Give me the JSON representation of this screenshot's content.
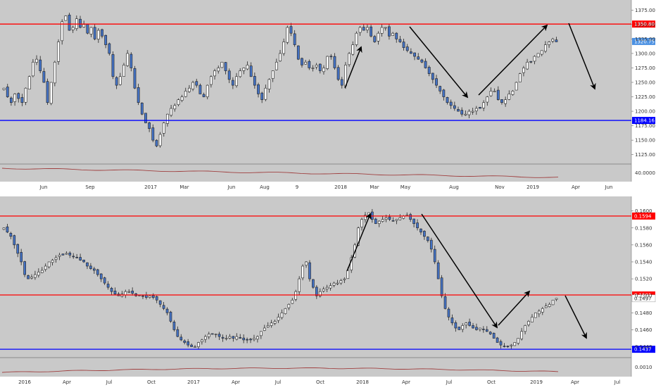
{
  "colors": {
    "background": "#c9c9c9",
    "axis_bg": "#ffffff",
    "bull_candle": "#ffffff",
    "bear_candle": "#4472c4",
    "wick": "#222222",
    "resistance": "#ff0000",
    "support": "#0000ff",
    "indicator": "#a04040",
    "arrow": "#000000",
    "last_price": "#4a90e2"
  },
  "chart_data": [
    {
      "type": "candlestick",
      "panel": "top",
      "ylim": [
        1110,
        1390
      ],
      "y_ticks": [
        "1375.00",
        "1350.00",
        "1325.00",
        "1300.00",
        "1275.00",
        "1250.00",
        "1225.00",
        "1200.00",
        "1175.00",
        "1150.00",
        "1125.00"
      ],
      "x_ticks": [
        "Jun",
        "Sep",
        "2017",
        "Mar",
        "Jun",
        "Aug",
        "9",
        "2018",
        "Mar",
        "May",
        "Aug",
        "Nov",
        "2019",
        "Apr",
        "Jun"
      ],
      "resistance": {
        "value": 1350.8,
        "label": "1350.80"
      },
      "support": {
        "value": 1184.16,
        "label": "1184.16"
      },
      "last_price": {
        "value": 1320.75,
        "label": "1320.75"
      },
      "indicator_label": "40.0000",
      "closes": [
        1240,
        1225,
        1215,
        1230,
        1222,
        1215,
        1240,
        1260,
        1285,
        1290,
        1270,
        1250,
        1215,
        1250,
        1285,
        1320,
        1355,
        1365,
        1340,
        1345,
        1360,
        1345,
        1350,
        1335,
        1345,
        1325,
        1340,
        1330,
        1315,
        1300,
        1260,
        1245,
        1260,
        1280,
        1300,
        1275,
        1240,
        1215,
        1195,
        1180,
        1170,
        1150,
        1140,
        1160,
        1180,
        1195,
        1205,
        1210,
        1220,
        1225,
        1235,
        1240,
        1250,
        1245,
        1230,
        1225,
        1245,
        1260,
        1270,
        1275,
        1285,
        1270,
        1255,
        1245,
        1260,
        1270,
        1275,
        1280,
        1260,
        1245,
        1230,
        1220,
        1240,
        1255,
        1270,
        1285,
        1300,
        1320,
        1345,
        1335,
        1315,
        1290,
        1280,
        1285,
        1275,
        1275,
        1280,
        1270,
        1275,
        1295,
        1295,
        1275,
        1255,
        1245,
        1280,
        1300,
        1315,
        1335,
        1345,
        1340,
        1345,
        1330,
        1320,
        1335,
        1345,
        1345,
        1330,
        1335,
        1325,
        1320,
        1310,
        1305,
        1300,
        1295,
        1290,
        1285,
        1275,
        1265,
        1255,
        1245,
        1235,
        1225,
        1215,
        1210,
        1205,
        1200,
        1195,
        1195,
        1200,
        1200,
        1205,
        1205,
        1215,
        1225,
        1235,
        1235,
        1220,
        1215,
        1220,
        1230,
        1235,
        1250,
        1265,
        1275,
        1285,
        1285,
        1295,
        1300,
        1305,
        1315,
        1320,
        1325,
        1320
      ]
    },
    {
      "type": "candlestick",
      "panel": "bottom",
      "ylim": [
        0.1428,
        0.1608
      ],
      "y_ticks": [
        "0.1600",
        "0.1580",
        "0.1560",
        "0.1540",
        "0.1520",
        "0.1500",
        "0.1480",
        "0.1460",
        "0.1440"
      ],
      "x_ticks": [
        "2016",
        "Apr",
        "Jul",
        "Oct",
        "2017",
        "Apr",
        "Jul",
        "Oct",
        "2018",
        "Apr",
        "Jul",
        "Oct",
        "2019",
        "Apr",
        "Jul"
      ],
      "resistance_upper": {
        "value": 0.1594,
        "label": "0.1594"
      },
      "resistance_lower": {
        "value": 0.1501,
        "label": "0.1501"
      },
      "support": {
        "value": 0.1437,
        "label": "0.1437"
      },
      "last_price": {
        "value": 0.1497,
        "label": "0.1497"
      },
      "indicator_label": "0.0010",
      "closes": [
        0.158,
        0.1575,
        0.157,
        0.156,
        0.155,
        0.154,
        0.1525,
        0.152,
        0.1522,
        0.1525,
        0.1528,
        0.153,
        0.1535,
        0.154,
        0.1542,
        0.1545,
        0.1548,
        0.1548,
        0.155,
        0.1548,
        0.1546,
        0.1545,
        0.1542,
        0.154,
        0.1535,
        0.1532,
        0.153,
        0.1525,
        0.152,
        0.1515,
        0.151,
        0.1505,
        0.1502,
        0.15,
        0.1502,
        0.1505,
        0.1505,
        0.1503,
        0.15,
        0.15,
        0.15,
        0.1498,
        0.15,
        0.1498,
        0.1495,
        0.149,
        0.1485,
        0.148,
        0.147,
        0.146,
        0.1452,
        0.1448,
        0.1445,
        0.1442,
        0.144,
        0.144,
        0.1445,
        0.1448,
        0.1452,
        0.1455,
        0.1455,
        0.1455,
        0.1452,
        0.145,
        0.145,
        0.1452,
        0.145,
        0.1452,
        0.145,
        0.1448,
        0.1448,
        0.1448,
        0.145,
        0.1452,
        0.1458,
        0.1462,
        0.1465,
        0.1468,
        0.147,
        0.1475,
        0.148,
        0.1485,
        0.149,
        0.1495,
        0.1505,
        0.152,
        0.1535,
        0.154,
        0.152,
        0.151,
        0.15,
        0.1505,
        0.1508,
        0.151,
        0.1512,
        0.1515,
        0.1515,
        0.1518,
        0.152,
        0.153,
        0.1545,
        0.156,
        0.158,
        0.159,
        0.1595,
        0.1598,
        0.159,
        0.1585,
        0.1588,
        0.159,
        0.1592,
        0.159,
        0.1588,
        0.159,
        0.1592,
        0.1594,
        0.1595,
        0.159,
        0.1585,
        0.158,
        0.1575,
        0.157,
        0.1565,
        0.1555,
        0.154,
        0.152,
        0.15,
        0.1485,
        0.1475,
        0.1468,
        0.1462,
        0.146,
        0.1465,
        0.1468,
        0.1465,
        0.1462,
        0.146,
        0.1462,
        0.146,
        0.1458,
        0.1455,
        0.145,
        0.1445,
        0.1442,
        0.144,
        0.144,
        0.1442,
        0.1445,
        0.145,
        0.1458,
        0.1465,
        0.147,
        0.1475,
        0.148,
        0.1482,
        0.1485,
        0.1488,
        0.149,
        0.1495,
        0.1497
      ]
    }
  ]
}
